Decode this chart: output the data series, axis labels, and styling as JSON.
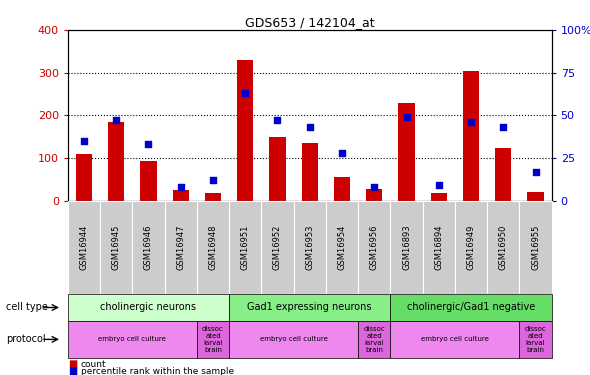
{
  "title": "GDS653 / 142104_at",
  "samples": [
    "GSM16944",
    "GSM16945",
    "GSM16946",
    "GSM16947",
    "GSM16948",
    "GSM16951",
    "GSM16952",
    "GSM16953",
    "GSM16954",
    "GSM16956",
    "GSM16893",
    "GSM16894",
    "GSM16949",
    "GSM16950",
    "GSM16955"
  ],
  "counts": [
    110,
    185,
    93,
    25,
    18,
    330,
    148,
    135,
    55,
    28,
    230,
    18,
    305,
    123,
    20
  ],
  "percentiles": [
    35,
    47,
    33,
    8,
    12,
    63,
    47,
    43,
    28,
    8,
    49,
    9,
    46,
    43,
    17
  ],
  "bar_color": "#cc0000",
  "dot_color": "#0000cc",
  "ylim_left": [
    0,
    400
  ],
  "ylim_right": [
    0,
    100
  ],
  "yticks_left": [
    0,
    100,
    200,
    300,
    400
  ],
  "yticks_right": [
    0,
    25,
    50,
    75,
    100
  ],
  "ytick_labels_right": [
    "0",
    "25",
    "50",
    "75",
    "100%"
  ],
  "cell_type_groups": [
    {
      "label": "cholinergic neurons",
      "start": 0,
      "end": 5,
      "color": "#ccffcc"
    },
    {
      "label": "Gad1 expressing neurons",
      "start": 5,
      "end": 10,
      "color": "#88ee88"
    },
    {
      "label": "cholinergic/Gad1 negative",
      "start": 10,
      "end": 15,
      "color": "#66dd66"
    }
  ],
  "protocol_groups": [
    {
      "label": "embryo cell culture",
      "start": 0,
      "end": 4,
      "color": "#ee88ee"
    },
    {
      "label": "dissoc\nated\nlarval\nbrain",
      "start": 4,
      "end": 5,
      "color": "#dd66dd"
    },
    {
      "label": "embryo cell culture",
      "start": 5,
      "end": 9,
      "color": "#ee88ee"
    },
    {
      "label": "dissoc\nated\nlarval\nbrain",
      "start": 9,
      "end": 10,
      "color": "#dd66dd"
    },
    {
      "label": "embryo cell culture",
      "start": 10,
      "end": 14,
      "color": "#ee88ee"
    },
    {
      "label": "dissoc\nated\nlarval\nbrain",
      "start": 14,
      "end": 15,
      "color": "#dd66dd"
    }
  ],
  "cell_type_row_label": "cell type",
  "protocol_row_label": "protocol",
  "legend_count_label": "count",
  "legend_percentile_label": "percentile rank within the sample",
  "sample_label_bg": "#cccccc",
  "plot_bg": "#ffffff",
  "fig_bg": "#ffffff"
}
